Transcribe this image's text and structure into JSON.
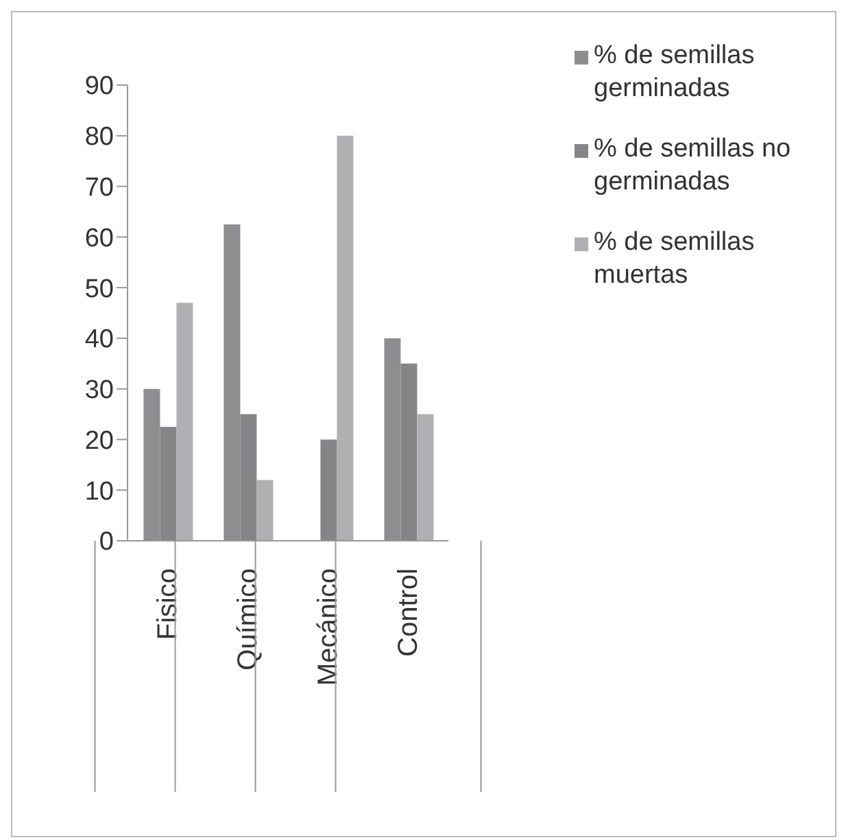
{
  "chart_data": {
    "type": "bar",
    "categories": [
      "Fisico",
      "Químico",
      "Mecánico",
      "Control"
    ],
    "series": [
      {
        "name": "% de semillas germinadas",
        "color": "#8e8e90",
        "values": [
          30,
          62.5,
          0,
          40
        ]
      },
      {
        "name": "% de semillas no germinadas",
        "color": "#858587",
        "values": [
          22.5,
          25,
          20,
          35
        ]
      },
      {
        "name": "% de semillas muertas",
        "color": "#b0b0b2",
        "values": [
          47,
          12,
          80,
          25
        ]
      }
    ],
    "ylim": [
      0,
      90
    ],
    "yticks": [
      0,
      10,
      20,
      30,
      40,
      50,
      60,
      70,
      80,
      90
    ],
    "grid": false,
    "legend": "top right"
  }
}
